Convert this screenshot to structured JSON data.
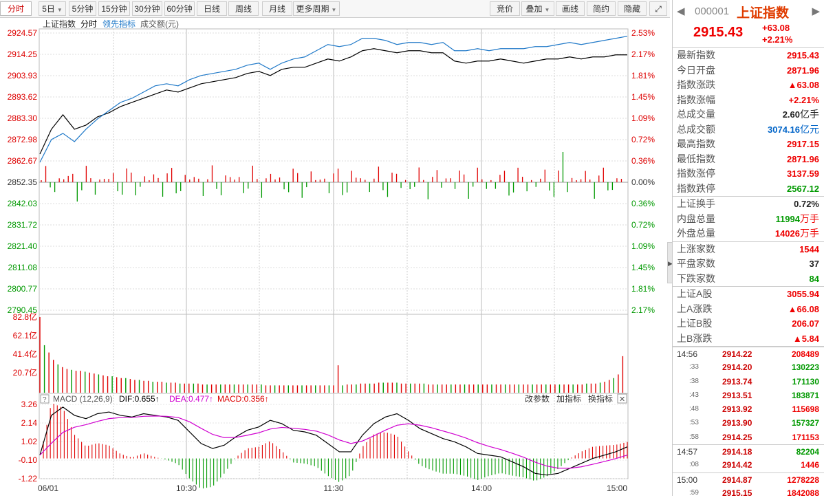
{
  "toolbar": {
    "tabs": [
      {
        "label": "分时",
        "caret": false,
        "active": true
      },
      {
        "label": "5日",
        "caret": true
      },
      {
        "label": "5分钟"
      },
      {
        "label": "15分钟"
      },
      {
        "label": "30分钟"
      },
      {
        "label": "60分钟"
      },
      {
        "label": "日线"
      },
      {
        "label": "周线"
      },
      {
        "label": "月线"
      },
      {
        "label": "更多周期",
        "caret": true
      }
    ],
    "right": [
      {
        "label": "竞价"
      },
      {
        "label": "叠加",
        "caret": true
      },
      {
        "label": "画线"
      },
      {
        "label": "简约"
      },
      {
        "label": "隐藏"
      }
    ],
    "expand_icon": "expand-icon"
  },
  "chart_header": {
    "name": "上证指数",
    "mode": "分时",
    "lead": "领先指标",
    "amount": "成交额(元)"
  },
  "macd_header": {
    "help": "?",
    "title": "MACD (12,26,9)",
    "dif": "DIF:0.655↑",
    "dea": "DEA:0.477↑",
    "macd": "MACD:0.356↑",
    "btn1": "改参数",
    "btn2": "加指标",
    "btn3": "换指标",
    "close": "✕"
  },
  "colors": {
    "index_line": "#000000",
    "lead_line": "#1e78c8",
    "up": "#e00000",
    "down": "#009900",
    "dea": "#d000d0"
  },
  "chart_data": {
    "type": "line",
    "x_ticks": [
      "06/01",
      "10:30",
      "11:30",
      "14:00",
      "15:00"
    ],
    "price_ticks": [
      "2924.57",
      "2914.25",
      "2903.93",
      "2893.62",
      "2883.30",
      "2872.98",
      "2862.67",
      "2852.35",
      "2842.03",
      "2831.72",
      "2821.40",
      "2811.08",
      "2800.77",
      "2790.45"
    ],
    "pct_ticks": [
      "2.53%",
      "2.17%",
      "1.81%",
      "1.45%",
      "1.09%",
      "0.72%",
      "0.36%",
      "0.00%",
      "0.36%",
      "0.72%",
      "1.09%",
      "1.45%",
      "1.81%",
      "2.17%"
    ],
    "vol_ticks": [
      "82.8亿",
      "62.1亿",
      "41.4亿",
      "20.7亿"
    ],
    "macd_ticks": [
      "3.26",
      "2.14",
      "1.02",
      "-0.10",
      "-1.22"
    ],
    "price_range": [
      2790.45,
      2924.57
    ],
    "vol_max": 82.8,
    "macd_range": [
      -1.22,
      3.26
    ],
    "series": [
      {
        "name": "上证指数",
        "values": [
          2866,
          2878,
          2885,
          2878,
          2880,
          2884,
          2886,
          2889,
          2891,
          2893,
          2895,
          2897,
          2896,
          2898,
          2900,
          2901,
          2902,
          2903,
          2905,
          2906,
          2904,
          2907,
          2908,
          2908,
          2910,
          2912,
          2911,
          2913,
          2916,
          2917,
          2916,
          2915,
          2916,
          2916,
          2915,
          2915,
          2911,
          2910,
          2911,
          2911,
          2912,
          2911,
          2910,
          2911,
          2912,
          2912,
          2913,
          2912,
          2913,
          2913,
          2914,
          2914
        ]
      },
      {
        "name": "领先指标",
        "values": [
          2862,
          2873,
          2876,
          2872,
          2878,
          2883,
          2887,
          2891,
          2893,
          2896,
          2899,
          2900,
          2899,
          2902,
          2904,
          2905,
          2906,
          2907,
          2909,
          2910,
          2907,
          2910,
          2912,
          2913,
          2916,
          2919,
          2918,
          2919,
          2922,
          2922,
          2921,
          2919,
          2920,
          2920,
          2919,
          2920,
          2916,
          2916,
          2917,
          2916,
          2917,
          2917,
          2917,
          2918,
          2918,
          2919,
          2920,
          2919,
          2920,
          2921,
          2922,
          2923
        ]
      }
    ],
    "volume": [
      82.8,
      52,
      44,
      36,
      31,
      28,
      26,
      25,
      24,
      24,
      23,
      22,
      21,
      20,
      19,
      18,
      18,
      17,
      16,
      16,
      15,
      14,
      14,
      13,
      13,
      12,
      12,
      12,
      11,
      11,
      11,
      10,
      10,
      10,
      10,
      10,
      9,
      9,
      9,
      9,
      9,
      9,
      9,
      9,
      9,
      9,
      9,
      9,
      9,
      9,
      8,
      8,
      8,
      8,
      8,
      8,
      8,
      8,
      8,
      8,
      8,
      8,
      8,
      8,
      8,
      8,
      30,
      8,
      9,
      9,
      9,
      10,
      10,
      10,
      10,
      11,
      11,
      11,
      11,
      11,
      10,
      10,
      10,
      10,
      10,
      10,
      9,
      9,
      9,
      9,
      9,
      9,
      9,
      9,
      9,
      9,
      9,
      9,
      9,
      9,
      9,
      9,
      9,
      9,
      9,
      9,
      9,
      9,
      9,
      9,
      9,
      9,
      9,
      9,
      9,
      9,
      9,
      9,
      9,
      9,
      9,
      10,
      10,
      10,
      11,
      12,
      14,
      16,
      20,
      40
    ],
    "dif": [
      0.2,
      2.6,
      3.1,
      2.6,
      2.4,
      2.7,
      2.8,
      2.6,
      2.5,
      2.7,
      2.6,
      2.5,
      2.3,
      1.6,
      0.9,
      0.6,
      0.8,
      1.3,
      1.7,
      1.9,
      2.3,
      2.1,
      1.7,
      1.6,
      1.4,
      0.9,
      0.4,
      0.4,
      1.4,
      2.1,
      2.5,
      2.7,
      2.3,
      1.8,
      1.5,
      1.2,
      1.0,
      0.7,
      0.3,
      0.2,
      0.1,
      -0.2,
      -0.5,
      -0.9,
      -1.0,
      -0.9,
      -0.6,
      -0.3,
      0.0,
      0.2,
      0.4,
      0.7
    ]
  },
  "quote": {
    "code": "000001",
    "name": "上证指数",
    "prev_icon": "◀",
    "next_icon": "▶",
    "price": "2915.43",
    "change": "+63.08",
    "change_pct": "+2.21%",
    "stats": [
      {
        "label": "最新指数",
        "value": "2915.43",
        "cls": "red"
      },
      {
        "label": "今日开盘",
        "value": "2871.96",
        "cls": "red"
      },
      {
        "label": "指数涨跌",
        "value": "▲63.08",
        "cls": "red"
      },
      {
        "label": "指数涨幅",
        "value": "+2.21%",
        "cls": "red"
      },
      {
        "label": "总成交量",
        "value": "2.60",
        "unit": "亿手",
        "cls": "blk"
      },
      {
        "label": "总成交额",
        "value": "3074.16",
        "unit": "亿元",
        "cls": "blu"
      },
      {
        "label": "最高指数",
        "value": "2917.15",
        "cls": "red"
      },
      {
        "label": "最低指数",
        "value": "2871.96",
        "cls": "red"
      },
      {
        "label": "指数涨停",
        "value": "3137.59",
        "cls": "red"
      },
      {
        "label": "指数跌停",
        "value": "2567.12",
        "cls": "grn"
      }
    ],
    "stats2": [
      {
        "label": "上证换手",
        "value": "0.72%",
        "cls": "blk"
      },
      {
        "label": "内盘总量",
        "value": "11994",
        "unit": "万手",
        "cls": "grn"
      },
      {
        "label": "外盘总量",
        "value": "14026",
        "unit": "万手",
        "cls": "red"
      }
    ],
    "stats3": [
      {
        "label": "上涨家数",
        "value": "1544",
        "cls": "red"
      },
      {
        "label": "平盘家数",
        "value": "37",
        "cls": "blk"
      },
      {
        "label": "下跌家数",
        "value": "84",
        "cls": "grn"
      }
    ],
    "stats4": [
      {
        "label": "上证A股",
        "value": "3055.94",
        "cls": "red"
      },
      {
        "label": "上A涨跌",
        "value": "▲66.08",
        "cls": "red"
      },
      {
        "label": "上证B股",
        "value": "206.07",
        "cls": "red"
      },
      {
        "label": "上B涨跌",
        "value": "▲5.84",
        "cls": "red"
      }
    ],
    "ticks": [
      {
        "time": "14:56",
        "sub": false,
        "price": "2914.22",
        "vol": "208489",
        "cls": "red"
      },
      {
        "time": ":33",
        "sub": true,
        "price": "2914.20",
        "vol": "130223",
        "cls": "grn"
      },
      {
        "time": ":38",
        "sub": true,
        "price": "2913.74",
        "vol": "171130",
        "cls": "grn"
      },
      {
        "time": ":43",
        "sub": true,
        "price": "2913.51",
        "vol": "183871",
        "cls": "grn"
      },
      {
        "time": ":48",
        "sub": true,
        "price": "2913.92",
        "vol": "115698",
        "cls": "red"
      },
      {
        "time": ":53",
        "sub": true,
        "price": "2913.90",
        "vol": "157327",
        "cls": "grn"
      },
      {
        "time": ":58",
        "sub": true,
        "price": "2914.25",
        "vol": "171153",
        "cls": "red"
      },
      {
        "time": "14:57",
        "sub": false,
        "price": "2914.18",
        "vol": "82204",
        "cls": "grn"
      },
      {
        "time": ":08",
        "sub": true,
        "price": "2914.42",
        "vol": "1446",
        "cls": "red"
      },
      {
        "time": "15:00",
        "sub": false,
        "price": "2914.87",
        "vol": "1278228",
        "cls": "red"
      },
      {
        "time": ":59",
        "sub": true,
        "price": "2915.15",
        "vol": "1842088",
        "cls": "red"
      }
    ]
  }
}
